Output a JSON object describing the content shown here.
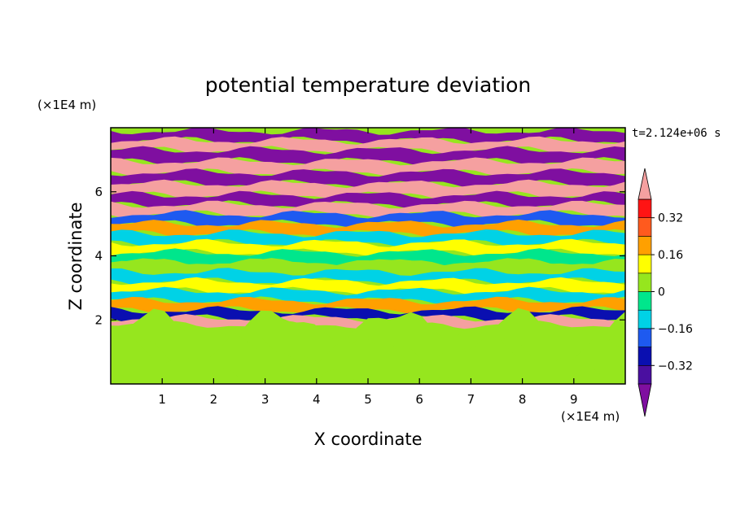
{
  "chart_data": {
    "type": "heatmap",
    "title": "potential temperature deviation",
    "xlabel": "X coordinate",
    "ylabel": "Z coordinate",
    "x_unit": "(×1E4 m)",
    "y_unit": "(×1E4 m)",
    "time_label": "t=2.124e+06 s",
    "xlim": [
      0,
      10
    ],
    "ylim": [
      0,
      8
    ],
    "x_ticks": [
      1,
      2,
      3,
      4,
      5,
      6,
      7,
      8,
      9
    ],
    "y_ticks": [
      2,
      4,
      6
    ],
    "colorbar": {
      "levels": [
        -0.4,
        -0.32,
        -0.24,
        -0.16,
        -0.08,
        0,
        0.08,
        0.16,
        0.24,
        0.32,
        0.4
      ],
      "tick_labels": [
        "0.32",
        "0.16",
        "0",
        "−0.16",
        "−0.32"
      ],
      "tick_values": [
        0.32,
        0.16,
        0,
        -0.16,
        -0.32
      ],
      "colors": [
        "#7f0fa0",
        "#4a0fa0",
        "#0a0fb0",
        "#1e5af0",
        "#00d2e6",
        "#00e68c",
        "#96e61e",
        "#ffff00",
        "#ffa000",
        "#ff5a1e",
        "#ff1414",
        "#f5a0a0"
      ],
      "extend": "both"
    },
    "bands": [
      {
        "z": 7.9,
        "value": -0.45
      },
      {
        "z": 7.6,
        "value": 0.45
      },
      {
        "z": 7.3,
        "value": -0.45
      },
      {
        "z": 6.95,
        "value": 0.45
      },
      {
        "z": 6.6,
        "value": -0.45
      },
      {
        "z": 6.25,
        "value": 0.45
      },
      {
        "z": 5.9,
        "value": -0.45
      },
      {
        "z": 5.6,
        "value": 0.45
      },
      {
        "z": 5.3,
        "value": -0.2
      },
      {
        "z": 5.0,
        "value": 0.2
      },
      {
        "z": 4.7,
        "value": -0.1
      },
      {
        "z": 4.4,
        "value": 0.1
      },
      {
        "z": 4.1,
        "value": -0.05
      },
      {
        "z": 3.8,
        "value": 0.05
      },
      {
        "z": 3.5,
        "value": -0.1
      },
      {
        "z": 3.2,
        "value": 0.15
      },
      {
        "z": 2.9,
        "value": -0.1
      },
      {
        "z": 2.6,
        "value": 0.2
      },
      {
        "z": 2.3,
        "value": -0.25
      },
      {
        "z": 2.05,
        "value": 0.45
      },
      {
        "z": 1.85,
        "value": 0.04
      },
      {
        "z": 1.0,
        "value": 0.02
      }
    ]
  }
}
